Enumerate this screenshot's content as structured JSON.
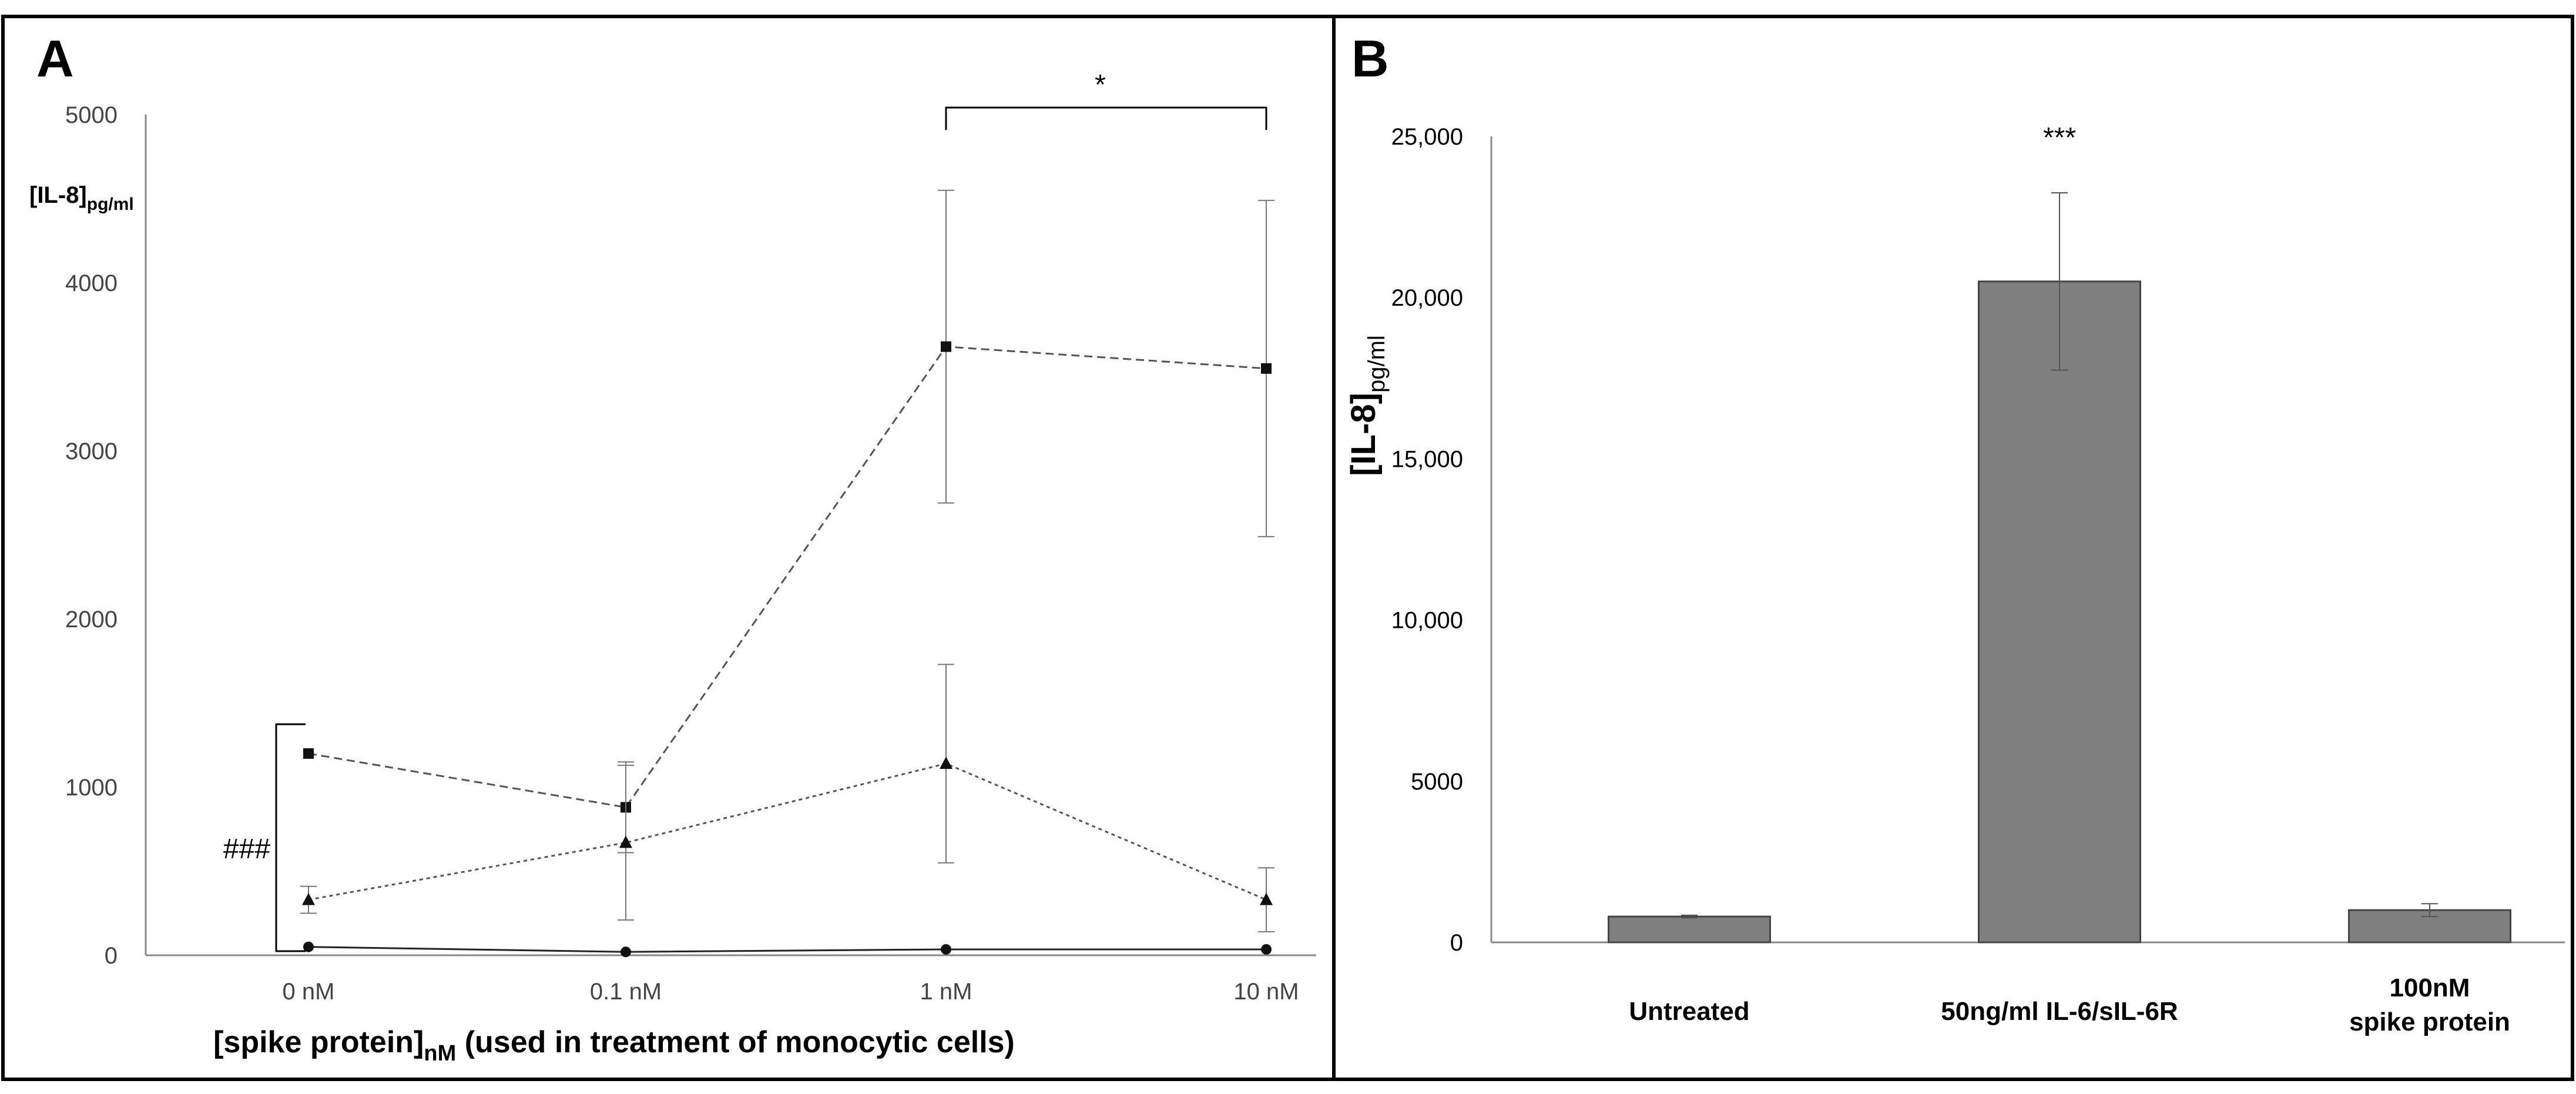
{
  "chart_data": [
    {
      "panel": "A",
      "type": "line",
      "categories": [
        "0 nM",
        "0.1 nM",
        "1 nM",
        "10 nM"
      ],
      "ylim": [
        0,
        5000
      ],
      "yticks": [
        "0",
        "1000",
        "2000",
        "3000",
        "4000",
        "5000"
      ],
      "ylabel": {
        "base": "[IL-8]",
        "sub": "pg/ml"
      },
      "xlabel": {
        "base": "[spike protein]",
        "sub": "nM",
        "rest": " (used in treatment of monocytic cells)"
      },
      "grid": false,
      "legend": "none",
      "series": [
        {
          "marker": "square",
          "dash": "dashed",
          "color": "#555555",
          "values": [
            1200,
            880,
            3620,
            3490
          ],
          "errors": [
            0,
            270,
            930,
            1000
          ]
        },
        {
          "marker": "triangle",
          "dash": "dotted",
          "color": "#555555",
          "values": [
            330,
            670,
            1140,
            330
          ],
          "errors": [
            80,
            460,
            590,
            190
          ]
        },
        {
          "marker": "circle",
          "dash": "solid",
          "color": "#222222",
          "values": [
            50,
            20,
            35,
            35
          ],
          "errors": [
            0,
            0,
            0,
            0
          ]
        }
      ],
      "annotations": {
        "star": "*",
        "hash": "###"
      }
    },
    {
      "panel": "B",
      "type": "bar",
      "categories": [
        [
          "Untreated"
        ],
        [
          "50ng/ml IL-6/sIL-6R"
        ],
        [
          "100nM",
          "spike protein"
        ]
      ],
      "values": [
        800,
        20500,
        1000
      ],
      "errors": [
        40,
        2750,
        200
      ],
      "ylim": [
        0,
        25000
      ],
      "yticks": [
        "0",
        "5000",
        "10,000",
        "15,000",
        "20,000",
        "25,000"
      ],
      "ylabel": {
        "base": "[IL-8]",
        "sub": "pg/ml"
      },
      "bar_color": "#7f7f7f",
      "grid": false,
      "legend": "none",
      "annotations": {
        "star": "***"
      }
    }
  ],
  "labels": {
    "panelA": "A",
    "panelB": "B"
  }
}
